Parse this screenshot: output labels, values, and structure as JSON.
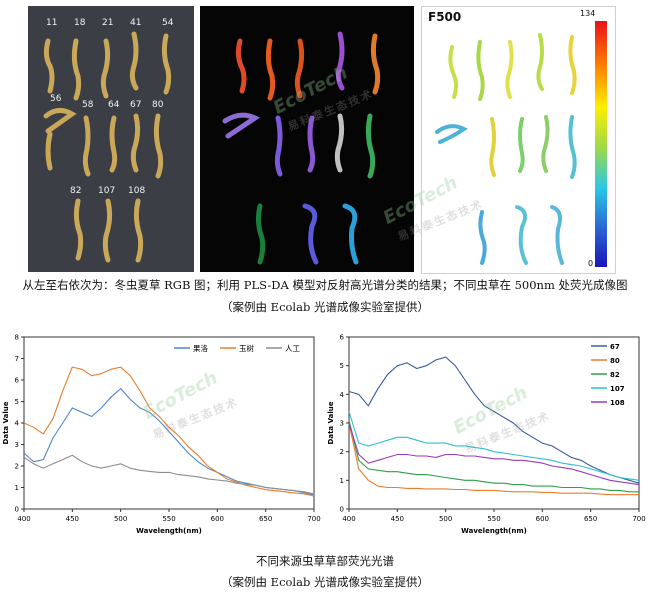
{
  "top_panels": {
    "rgb_labels": [
      "11",
      "18",
      "21",
      "41",
      "54",
      "56",
      "58",
      "64",
      "67",
      "80",
      "82",
      "107",
      "108"
    ],
    "f500_label": "F500",
    "colorbar_max": "134",
    "colorbar_min": "0",
    "colorbar_colors": [
      "#e8101a",
      "#ff7f00",
      "#ffee00",
      "#9ad94b",
      "#29c7e6",
      "#2a67d4",
      "#1b14b8"
    ]
  },
  "captions": {
    "top_line1": "从左至右依次为：冬虫夏草 RGB 图；利用 PLS-DA 模型对反射高光谱分类的结果；不同虫草在 500nm 处荧光成像图",
    "top_line2": "（案例由 Ecolab 光谱成像实验室提供）",
    "bottom_line1": "不同来源虫草草部荧光光谱",
    "bottom_line2": "（案例由 Ecolab 光谱成像实验室提供）"
  },
  "watermarks": {
    "brand": "EcoTech",
    "cn": "易科泰生态技术"
  },
  "chart_data": [
    {
      "type": "line",
      "xlabel": "Wavelength(nm)",
      "ylabel": "Data Value",
      "xlim": [
        400,
        700
      ],
      "ylim": [
        0,
        8
      ],
      "xticks": [
        400,
        450,
        500,
        550,
        600,
        650,
        700
      ],
      "yticks": [
        0,
        1,
        2,
        3,
        4,
        5,
        6,
        7,
        8
      ],
      "legend_position": "top-right",
      "legend_layout": "horizontal",
      "x": [
        400,
        410,
        420,
        430,
        440,
        450,
        460,
        470,
        480,
        490,
        500,
        510,
        520,
        530,
        540,
        550,
        560,
        570,
        580,
        590,
        600,
        610,
        620,
        630,
        640,
        650,
        660,
        670,
        680,
        690,
        700
      ],
      "series": [
        {
          "name": "果洛",
          "color": "#4f86c9",
          "values": [
            2.6,
            2.2,
            2.3,
            3.3,
            4.0,
            4.7,
            4.5,
            4.3,
            4.7,
            5.2,
            5.6,
            5.1,
            4.7,
            4.5,
            4.1,
            3.6,
            3.1,
            2.6,
            2.2,
            1.9,
            1.7,
            1.5,
            1.3,
            1.2,
            1.1,
            1.0,
            0.95,
            0.9,
            0.85,
            0.75,
            0.65
          ]
        },
        {
          "name": "玉树",
          "color": "#e87d2e",
          "values": [
            4.0,
            3.8,
            3.5,
            4.2,
            5.5,
            6.6,
            6.5,
            6.2,
            6.3,
            6.5,
            6.6,
            6.2,
            5.5,
            4.7,
            4.3,
            3.8,
            3.4,
            2.9,
            2.5,
            2.0,
            1.7,
            1.4,
            1.25,
            1.1,
            1.0,
            0.9,
            0.85,
            0.8,
            0.75,
            0.7,
            0.6
          ]
        },
        {
          "name": "人工",
          "color": "#8c8c8c",
          "values": [
            2.4,
            2.1,
            1.9,
            2.1,
            2.3,
            2.5,
            2.2,
            2.0,
            1.9,
            2.0,
            2.1,
            1.9,
            1.8,
            1.75,
            1.7,
            1.7,
            1.6,
            1.55,
            1.5,
            1.4,
            1.35,
            1.3,
            1.2,
            1.15,
            1.1,
            1.0,
            0.95,
            0.9,
            0.85,
            0.8,
            0.7
          ]
        }
      ]
    },
    {
      "type": "line",
      "xlabel": "Wavelength(nm)",
      "ylabel": "Data Value",
      "xlim": [
        400,
        700
      ],
      "ylim": [
        0,
        6
      ],
      "xticks": [
        400,
        450,
        500,
        550,
        600,
        650,
        700
      ],
      "yticks": [
        0,
        1,
        2,
        3,
        4,
        5,
        6
      ],
      "legend_position": "top-right",
      "legend_layout": "vertical",
      "x": [
        400,
        410,
        420,
        430,
        440,
        450,
        460,
        470,
        480,
        490,
        500,
        510,
        520,
        530,
        540,
        550,
        560,
        570,
        580,
        590,
        600,
        610,
        620,
        630,
        640,
        650,
        660,
        670,
        680,
        690,
        700
      ],
      "series": [
        {
          "name": "67",
          "color": "#3a5ba0",
          "values": [
            4.1,
            4.0,
            3.6,
            4.2,
            4.7,
            5.0,
            5.1,
            4.9,
            5.0,
            5.2,
            5.3,
            5.0,
            4.5,
            4.0,
            3.6,
            3.4,
            3.2,
            3.0,
            2.7,
            2.5,
            2.3,
            2.2,
            2.0,
            1.8,
            1.7,
            1.5,
            1.35,
            1.2,
            1.1,
            1.0,
            0.9
          ]
        },
        {
          "name": "80",
          "color": "#e87d2e",
          "values": [
            3.0,
            1.4,
            1.0,
            0.8,
            0.75,
            0.75,
            0.72,
            0.72,
            0.7,
            0.7,
            0.7,
            0.68,
            0.68,
            0.65,
            0.65,
            0.65,
            0.62,
            0.6,
            0.6,
            0.6,
            0.58,
            0.58,
            0.55,
            0.55,
            0.55,
            0.55,
            0.52,
            0.5,
            0.5,
            0.5,
            0.5
          ]
        },
        {
          "name": "82",
          "color": "#2f9e4a",
          "values": [
            3.1,
            1.7,
            1.4,
            1.35,
            1.3,
            1.3,
            1.25,
            1.2,
            1.2,
            1.15,
            1.1,
            1.05,
            1.0,
            1.0,
            0.95,
            0.9,
            0.9,
            0.85,
            0.85,
            0.8,
            0.8,
            0.8,
            0.75,
            0.75,
            0.75,
            0.7,
            0.7,
            0.65,
            0.65,
            0.6,
            0.6
          ]
        },
        {
          "name": "107",
          "color": "#2ec0d0",
          "values": [
            3.4,
            2.3,
            2.2,
            2.3,
            2.4,
            2.5,
            2.5,
            2.4,
            2.3,
            2.3,
            2.3,
            2.2,
            2.2,
            2.15,
            2.1,
            2.0,
            1.95,
            1.9,
            1.85,
            1.8,
            1.75,
            1.7,
            1.6,
            1.55,
            1.5,
            1.4,
            1.3,
            1.2,
            1.1,
            1.05,
            1.0
          ]
        },
        {
          "name": "108",
          "color": "#9b3bb5",
          "values": [
            3.0,
            1.9,
            1.6,
            1.7,
            1.8,
            1.9,
            1.9,
            1.85,
            1.85,
            1.8,
            1.9,
            1.9,
            1.85,
            1.85,
            1.8,
            1.75,
            1.75,
            1.7,
            1.7,
            1.65,
            1.6,
            1.5,
            1.45,
            1.4,
            1.3,
            1.2,
            1.1,
            1.0,
            0.95,
            0.9,
            0.85
          ]
        }
      ]
    }
  ]
}
